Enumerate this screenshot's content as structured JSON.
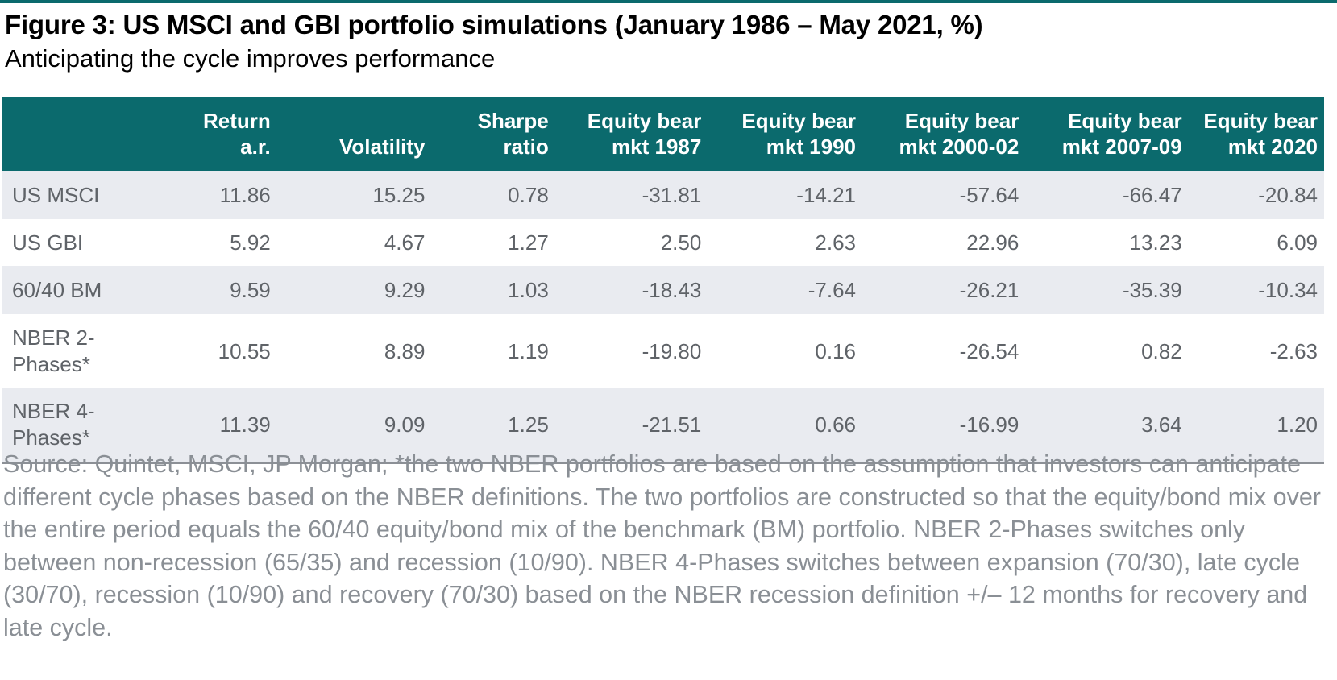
{
  "figure": {
    "title": "Figure 3: US MSCI and GBI portfolio simulations (January 1986 – May 2021, %)",
    "subtitle": "Anticipating the cycle improves performance",
    "accent_color": "#0b6a6d",
    "shaded_row_color": "#e9ebf0"
  },
  "table": {
    "headers": [
      "",
      "Return\na.r.",
      "Volatility",
      "Sharpe\nratio",
      "Equity bear\nmkt 1987",
      "Equity bear\nmkt 1990",
      "Equity bear\nmkt 2000-02",
      "Equity bear\nmkt 2007-09",
      "Equity bear\nmkt 2020"
    ],
    "rows": [
      [
        "US MSCI",
        "11.86",
        "15.25",
        "0.78",
        "-31.81",
        "-14.21",
        "-57.64",
        "-66.47",
        "-20.84"
      ],
      [
        "US GBI",
        "5.92",
        "4.67",
        "1.27",
        "2.50",
        "2.63",
        "22.96",
        "13.23",
        "6.09"
      ],
      [
        "60/40 BM",
        "9.59",
        "9.29",
        "1.03",
        "-18.43",
        "-7.64",
        "-26.21",
        "-35.39",
        "-10.34"
      ],
      [
        "NBER 2-\nPhases*",
        "10.55",
        "8.89",
        "1.19",
        "-19.80",
        "0.16",
        "-26.54",
        "0.82",
        "-2.63"
      ],
      [
        "NBER 4-\nPhases*",
        "11.39",
        "9.09",
        "1.25",
        "-21.51",
        "0.66",
        "-16.99",
        "3.64",
        "1.20"
      ]
    ]
  },
  "source": "Source: Quintet, MSCI, JP Morgan; *the two NBER portfolios are based on the assumption that investors can anticipate different cycle phases based on the NBER definitions. The two portfolios are constructed so that the equity/bond mix over the entire period equals the 60/40 equity/bond mix of the benchmark (BM) portfolio. NBER 2-Phases switches only between non-recession (65/35) and recession (10/90). NBER 4-Phases switches between expansion (70/30), late cycle (30/70), recession (10/90) and recovery (70/30) based on the NBER recession definition +/– 12 months for recovery and late cycle."
}
